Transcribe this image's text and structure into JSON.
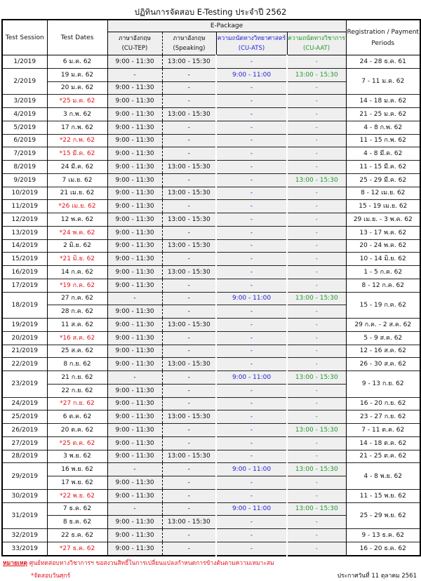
{
  "title": "ปฏิทินการจัดสอบ E-Testing ประจำปี 2562",
  "colors": {
    "friday_red": "#e3161c",
    "ats_blue": "#2424d8",
    "aat_green": "#1f9a2a",
    "cell_grey": "#efefef"
  },
  "headers": {
    "session": "Test Session",
    "dates": "Test Dates",
    "package": "E-Package",
    "tep_th": "ภาษาอังกฤษ",
    "tep_en": "(CU-TEP)",
    "spk_th": "ภาษาอังกฤษ",
    "spk_en": "(Speaking)",
    "ats_th": "ความถนัดทางวิทยาศาสตร์",
    "ats_en": "(CU-ATS)",
    "aat_th": "ความถนัดทางวิชาการ",
    "aat_en": "(CU-AAT)",
    "reg": "Registration / Payment Periods"
  },
  "sessions": [
    {
      "id": "1/2019",
      "reg": "24 - 28 ธ.ค. 61",
      "rows": [
        {
          "date": "6 ม.ค. 62",
          "fri": false,
          "tep": "9:00 - 11:30",
          "spk": "13:00 - 15:30",
          "ats": "-",
          "aat": "-"
        }
      ]
    },
    {
      "id": "2/2019",
      "reg": "7 - 11 ม.ค. 62",
      "rows": [
        {
          "date": "19 ม.ค. 62",
          "fri": false,
          "tep": "-",
          "spk": "-",
          "ats": "9:00 - 11:00",
          "aat": "13:00 - 15:30"
        },
        {
          "date": "20 ม.ค. 62",
          "fri": false,
          "tep": "9:00 - 11:30",
          "spk": "-",
          "ats": "-",
          "aat": "-"
        }
      ]
    },
    {
      "id": "3/2019",
      "reg": "14 - 18 ม.ค. 62",
      "rows": [
        {
          "date": "*25 ม.ค. 62",
          "fri": true,
          "tep": "9:00 - 11:30",
          "spk": "-",
          "ats": "-",
          "aat": "-"
        }
      ]
    },
    {
      "id": "4/2019",
      "reg": "21 - 25 ม.ค. 62",
      "rows": [
        {
          "date": "3 ก.พ. 62",
          "fri": false,
          "tep": "9:00 - 11:30",
          "spk": "13:00 - 15:30",
          "ats": "-",
          "aat": "-"
        }
      ]
    },
    {
      "id": "5/2019",
      "reg": "4 - 8 ก.พ. 62",
      "rows": [
        {
          "date": "17 ก.พ. 62",
          "fri": false,
          "tep": "9:00 - 11:30",
          "spk": "-",
          "ats": "-",
          "aat": "-"
        }
      ]
    },
    {
      "id": "6/2019",
      "reg": "11 - 15 ก.พ. 62",
      "rows": [
        {
          "date": "*22 ก.พ. 62",
          "fri": true,
          "tep": "9:00 - 11:30",
          "spk": "-",
          "ats": "-",
          "aat": "-"
        }
      ]
    },
    {
      "id": "7/2019",
      "reg": "4 - 8 มี.ค. 62",
      "rows": [
        {
          "date": "*15 มี.ค. 62",
          "fri": true,
          "tep": "9:00 - 11:30",
          "spk": "-",
          "ats": "-",
          "aat": "-"
        }
      ]
    },
    {
      "id": "8/2019",
      "reg": "11 - 15 มี.ค. 62",
      "rows": [
        {
          "date": "24 มี.ค. 62",
          "fri": false,
          "tep": "9:00 - 11:30",
          "spk": "13:00 - 15:30",
          "ats": "-",
          "aat": "-"
        }
      ]
    },
    {
      "id": "9/2019",
      "reg": "25 - 29 มี.ค. 62",
      "rows": [
        {
          "date": "7 เม.ย. 62",
          "fri": false,
          "tep": "9:00 - 11:30",
          "spk": "-",
          "ats": "-",
          "aat": "13:00 - 15:30"
        }
      ]
    },
    {
      "id": "10/2019",
      "reg": "8 - 12 เม.ย. 62",
      "rows": [
        {
          "date": "21 เม.ย. 62",
          "fri": false,
          "tep": "9:00 - 11:30",
          "spk": "13:00 - 15:30",
          "ats": "-",
          "aat": "-"
        }
      ]
    },
    {
      "id": "11/2019",
      "reg": "15 - 19 เม.ย. 62",
      "rows": [
        {
          "date": "*26 เม.ย. 62",
          "fri": true,
          "tep": "9:00 - 11:30",
          "spk": "-",
          "ats": "-",
          "aat": "-"
        }
      ]
    },
    {
      "id": "12/2019",
      "reg": "29 เม.ย. - 3 พ.ค. 62",
      "rows": [
        {
          "date": "12 พ.ค. 62",
          "fri": false,
          "tep": "9:00 - 11:30",
          "spk": "13:00 - 15:30",
          "ats": "-",
          "aat": "-"
        }
      ]
    },
    {
      "id": "13/2019",
      "reg": "13 - 17 พ.ค. 62",
      "rows": [
        {
          "date": "*24 พ.ค. 62",
          "fri": true,
          "tep": "9:00 - 11:30",
          "spk": "-",
          "ats": "-",
          "aat": "-"
        }
      ]
    },
    {
      "id": "14/2019",
      "reg": "20 - 24 พ.ค. 62",
      "rows": [
        {
          "date": "2 มิ.ย. 62",
          "fri": false,
          "tep": "9:00 - 11:30",
          "spk": "13:00 - 15:30",
          "ats": "-",
          "aat": "-"
        }
      ]
    },
    {
      "id": "15/2019",
      "reg": "10 - 14 มิ.ย. 62",
      "rows": [
        {
          "date": "*21 มิ.ย. 62",
          "fri": true,
          "tep": "9:00 - 11:30",
          "spk": "-",
          "ats": "-",
          "aat": "-"
        }
      ]
    },
    {
      "id": "16/2019",
      "reg": "1 - 5 ก.ค. 62",
      "rows": [
        {
          "date": "14 ก.ค. 62",
          "fri": false,
          "tep": "9:00 - 11:30",
          "spk": "13:00 - 15:30",
          "ats": "-",
          "aat": "-"
        }
      ]
    },
    {
      "id": "17/2019",
      "reg": "8 - 12 ก.ค. 62",
      "rows": [
        {
          "date": "*19 ก.ค. 62",
          "fri": true,
          "tep": "9:00 - 11:30",
          "spk": "-",
          "ats": "-",
          "aat": "-"
        }
      ]
    },
    {
      "id": "18/2019",
      "reg": "15 - 19 ก.ค. 62",
      "rows": [
        {
          "date": "27 ก.ค. 62",
          "fri": false,
          "tep": "-",
          "spk": "-",
          "ats": "9:00 - 11:00",
          "aat": "13:00 - 15:30"
        },
        {
          "date": "28 ก.ค. 62",
          "fri": false,
          "tep": "9:00 - 11:30",
          "spk": "-",
          "ats": "-",
          "aat": "-"
        }
      ]
    },
    {
      "id": "19/2019",
      "reg": "29 ก.ค. - 2 ส.ค. 62",
      "rows": [
        {
          "date": "11 ส.ค. 62",
          "fri": false,
          "tep": "9:00 - 11:30",
          "spk": "13:00 - 15:30",
          "ats": "-",
          "aat": "-"
        }
      ]
    },
    {
      "id": "20/2019",
      "reg": "5 - 9 ส.ค. 62",
      "rows": [
        {
          "date": "*16 ส.ค. 62",
          "fri": true,
          "tep": "9:00 - 11:30",
          "spk": "-",
          "ats": "-",
          "aat": "-"
        }
      ]
    },
    {
      "id": "21/2019",
      "reg": "12 - 16 ส.ค. 62",
      "rows": [
        {
          "date": "25 ส.ค. 62",
          "fri": false,
          "tep": "9:00 - 11:30",
          "spk": "-",
          "ats": "-",
          "aat": "-"
        }
      ]
    },
    {
      "id": "22/2019",
      "reg": "26 - 30 ส.ค. 62",
      "rows": [
        {
          "date": "8 ก.ย. 62",
          "fri": false,
          "tep": "9:00 - 11:30",
          "spk": "13:00 - 15:30",
          "ats": "-",
          "aat": "-"
        }
      ]
    },
    {
      "id": "23/2019",
      "reg": "9 - 13 ก.ย. 62",
      "rows": [
        {
          "date": "21 ก.ย. 62",
          "fri": false,
          "tep": "-",
          "spk": "-",
          "ats": "9:00 - 11:00",
          "aat": "13:00 - 15:30"
        },
        {
          "date": "22 ก.ย. 62",
          "fri": false,
          "tep": "9:00 - 11:30",
          "spk": "-",
          "ats": "-",
          "aat": "-"
        }
      ]
    },
    {
      "id": "24/2019",
      "reg": "16 - 20 ก.ย. 62",
      "rows": [
        {
          "date": "*27 ก.ย. 62",
          "fri": true,
          "tep": "9:00 - 11:30",
          "spk": "-",
          "ats": "-",
          "aat": "-"
        }
      ]
    },
    {
      "id": "25/2019",
      "reg": "23 - 27 ก.ย. 62",
      "rows": [
        {
          "date": "6 ต.ค. 62",
          "fri": false,
          "tep": "9:00 - 11:30",
          "spk": "13:00 - 15:30",
          "ats": "-",
          "aat": "-"
        }
      ]
    },
    {
      "id": "26/2019",
      "reg": "7 - 11 ต.ค. 62",
      "rows": [
        {
          "date": "20 ต.ค. 62",
          "fri": false,
          "tep": "9:00 - 11:30",
          "spk": "-",
          "ats": "-",
          "aat": "13:00 - 15:30"
        }
      ]
    },
    {
      "id": "27/2019",
      "reg": "14 - 18 ต.ค. 62",
      "rows": [
        {
          "date": "*25 ต.ค. 62",
          "fri": true,
          "tep": "9:00 - 11:30",
          "spk": "-",
          "ats": "-",
          "aat": "-"
        }
      ]
    },
    {
      "id": "28/2019",
      "reg": "21 - 25 ต.ค. 62",
      "rows": [
        {
          "date": "3 พ.ย. 62",
          "fri": false,
          "tep": "9:00 - 11:30",
          "spk": "13:00 - 15:30",
          "ats": "-",
          "aat": "-"
        }
      ]
    },
    {
      "id": "29/2019",
      "reg": "4 - 8 พ.ย. 62",
      "rows": [
        {
          "date": "16 พ.ย. 62",
          "fri": false,
          "tep": "-",
          "spk": "-",
          "ats": "9:00 - 11:00",
          "aat": "13:00 - 15:30"
        },
        {
          "date": "17 พ.ย. 62",
          "fri": false,
          "tep": "9:00 - 11:30",
          "spk": "-",
          "ats": "-",
          "aat": "-"
        }
      ]
    },
    {
      "id": "30/2019",
      "reg": "11 - 15 พ.ย. 62",
      "rows": [
        {
          "date": "*22 พ.ย. 62",
          "fri": true,
          "tep": "9:00 - 11:30",
          "spk": "-",
          "ats": "-",
          "aat": "-"
        }
      ]
    },
    {
      "id": "31/2019",
      "reg": "25 - 29 พ.ย. 62",
      "rows": [
        {
          "date": "7 ธ.ค. 62",
          "fri": false,
          "tep": "-",
          "spk": "-",
          "ats": "9:00 - 11:00",
          "aat": "13:00 - 15:30"
        },
        {
          "date": "8 ธ.ค. 62",
          "fri": false,
          "tep": "9:00 - 11:30",
          "spk": "13:00 - 15:30",
          "ats": "-",
          "aat": "-"
        }
      ]
    },
    {
      "id": "32/2019",
      "reg": "9 - 13 ธ.ค. 62",
      "rows": [
        {
          "date": "22 ธ.ค. 62",
          "fri": false,
          "tep": "9:00 - 11:30",
          "spk": "-",
          "ats": "-",
          "aat": "-"
        }
      ]
    },
    {
      "id": "33/2019",
      "reg": "16 - 20 ธ.ค. 62",
      "rows": [
        {
          "date": "*27 ธ.ค. 62",
          "fri": true,
          "tep": "9:00 - 11:30",
          "spk": "-",
          "ats": "-",
          "aat": "-"
        }
      ]
    }
  ],
  "footer": {
    "note_label": "หมายเหตุ",
    "note_text": "ศูนย์ทดสอบทางวิชาการฯ ขอสงวนสิทธิ์ในการเปลี่ยนแปลงกำหนดการข้างต้นตามความเหมาะสม",
    "friday_note": "*จัดสอบวันศุกร์",
    "announced": "ประกาศวันที่ 11 ตุลาคม 2561"
  }
}
